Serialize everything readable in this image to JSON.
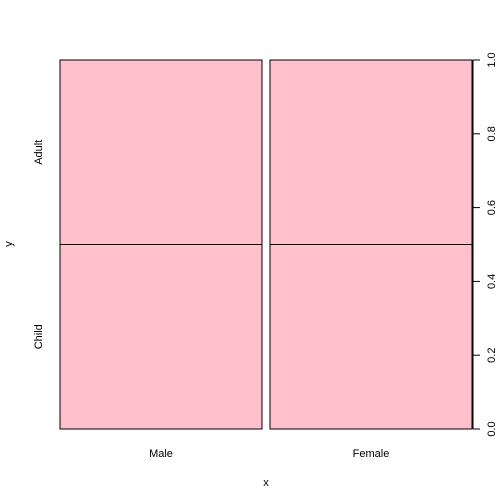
{
  "chart_data": {
    "type": "mosaic",
    "xlabel": "x",
    "ylabel": "y",
    "categories": [
      "Male",
      "Female"
    ],
    "y_levels": [
      "Child",
      "Adult"
    ],
    "series": [
      {
        "name": "Child",
        "values": [
          0.5,
          0.5
        ]
      },
      {
        "name": "Adult",
        "values": [
          0.5,
          0.5
        ]
      }
    ],
    "x_widths": [
      0.5,
      0.5
    ],
    "ylim": [
      0,
      1
    ],
    "yticks": [
      "0.0",
      "0.2",
      "0.4",
      "0.6",
      "0.8",
      "1.0"
    ],
    "fill_color": "#FFC0CB",
    "edge_color": "#000000"
  }
}
